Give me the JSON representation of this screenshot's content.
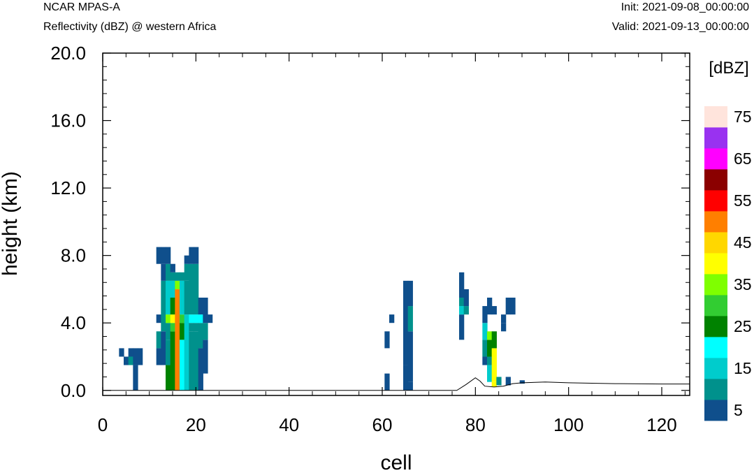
{
  "header": {
    "model": "NCAR MPAS-A",
    "field": "Reflectivity (dBZ) @ western Africa",
    "init": "Init: 2021-09-08_00:00:00",
    "valid": "Valid: 2021-09-13_00:00:00"
  },
  "chart_data": {
    "type": "heatmap",
    "xlabel": "cell",
    "ylabel": "height (km)",
    "xlim": [
      0,
      126
    ],
    "ylim": [
      -0.3,
      20.0
    ],
    "xticks": [
      0,
      20,
      40,
      60,
      80,
      100,
      120
    ],
    "yticks": [
      0.0,
      4.0,
      8.0,
      12.0,
      16.0,
      20.0
    ],
    "ytick_labels": [
      "0.0",
      "4.0",
      "8.0",
      "12.0",
      "16.0",
      "20.0"
    ],
    "colorbar": {
      "unit": "[dBZ]",
      "labels": [
        "5",
        "15",
        "25",
        "35",
        "45",
        "55",
        "65",
        "75"
      ],
      "levels": [
        5,
        10,
        15,
        20,
        25,
        30,
        35,
        40,
        45,
        50,
        55,
        60,
        65,
        70,
        75
      ],
      "colors": [
        "#0f4f8c",
        "#00918c",
        "#00cccc",
        "#00ffff",
        "#008200",
        "#32cd32",
        "#7fff00",
        "#ffff00",
        "#ffd700",
        "#ff7f00",
        "#ff0000",
        "#8b0000",
        "#ff00ff",
        "#9932f0",
        "#ffe4dc"
      ]
    },
    "cell_height_km": 0.5,
    "columns": [
      [
        4,
        [
          [
            2,
            2.5,
            5
          ]
        ]
      ],
      [
        5,
        [
          [
            1.5,
            2,
            5
          ]
        ]
      ],
      [
        6,
        [
          [
            2,
            2.5,
            5
          ],
          [
            1.5,
            2,
            10
          ]
        ]
      ],
      [
        7,
        [
          [
            0,
            1.5,
            5
          ],
          [
            1.5,
            2.5,
            5
          ]
        ]
      ],
      [
        8,
        [
          [
            1.5,
            2.5,
            5
          ]
        ]
      ],
      [
        12,
        [
          [
            1.5,
            2.5,
            5
          ],
          [
            2.5,
            3.5,
            10
          ],
          [
            4.0,
            4.5,
            5
          ],
          [
            7.5,
            8.5,
            5
          ]
        ]
      ],
      [
        13,
        [
          [
            1.5,
            3.5,
            5
          ],
          [
            3.5,
            6.5,
            10
          ],
          [
            6.5,
            7.5,
            5
          ],
          [
            7.5,
            8.5,
            5
          ]
        ]
      ],
      [
        14,
        [
          [
            0,
            1.5,
            25
          ],
          [
            1.5,
            3.0,
            10
          ],
          [
            3.0,
            4.0,
            10
          ],
          [
            4.0,
            4.5,
            35
          ],
          [
            4.5,
            6.5,
            15
          ],
          [
            6.5,
            7.5,
            10
          ],
          [
            7.5,
            8.5,
            5
          ]
        ]
      ],
      [
        15,
        [
          [
            0,
            3.5,
            25
          ],
          [
            3.5,
            4.0,
            30
          ],
          [
            4.0,
            4.5,
            40
          ],
          [
            4.5,
            5.5,
            25
          ],
          [
            5.5,
            6.5,
            15
          ],
          [
            6.5,
            7.0,
            10
          ],
          [
            7.0,
            7.5,
            5
          ]
        ]
      ],
      [
        16,
        [
          [
            0,
            6.0,
            50
          ],
          [
            6.0,
            6.5,
            35
          ],
          [
            6.5,
            7.0,
            10
          ]
        ]
      ],
      [
        17,
        [
          [
            0,
            3.0,
            20
          ],
          [
            3.0,
            4.0,
            25
          ],
          [
            4.0,
            4.5,
            30
          ],
          [
            4.5,
            6.5,
            15
          ],
          [
            6.5,
            7.0,
            10
          ]
        ]
      ],
      [
        18,
        [
          [
            0,
            4.5,
            15
          ],
          [
            4.5,
            6.5,
            10
          ],
          [
            6.5,
            7.5,
            10
          ],
          [
            7.5,
            8.0,
            5
          ]
        ]
      ],
      [
        19,
        [
          [
            0,
            3.5,
            10
          ],
          [
            3.5,
            4.0,
            10
          ],
          [
            4.0,
            4.5,
            20
          ],
          [
            4.5,
            7.5,
            10
          ],
          [
            7.5,
            8.5,
            5
          ]
        ]
      ],
      [
        20,
        [
          [
            0,
            3.5,
            10
          ],
          [
            3.5,
            4.0,
            10
          ],
          [
            4.0,
            4.5,
            20
          ],
          [
            4.5,
            7.5,
            10
          ],
          [
            7.5,
            8.5,
            5
          ]
        ]
      ],
      [
        21,
        [
          [
            0,
            2.5,
            5
          ],
          [
            2.5,
            4.0,
            10
          ],
          [
            4.0,
            4.5,
            20
          ],
          [
            4.5,
            5.5,
            5
          ]
        ]
      ],
      [
        22,
        [
          [
            1.0,
            3.0,
            5
          ],
          [
            3.0,
            4.0,
            10
          ],
          [
            4.0,
            5.5,
            5
          ]
        ]
      ],
      [
        23,
        [
          [
            4.0,
            4.5,
            5
          ]
        ]
      ],
      [
        61,
        [
          [
            0,
            1.0,
            5
          ],
          [
            2.5,
            3.5,
            5
          ]
        ]
      ],
      [
        62,
        [
          [
            4.0,
            4.5,
            5
          ]
        ]
      ],
      [
        65,
        [
          [
            0,
            1.5,
            5
          ],
          [
            1.5,
            6.5,
            5
          ]
        ]
      ],
      [
        66,
        [
          [
            0,
            0.5,
            5
          ],
          [
            0.5,
            3.5,
            5
          ],
          [
            3.5,
            5.0,
            10
          ],
          [
            5.0,
            6.5,
            5
          ]
        ]
      ],
      [
        77,
        [
          [
            3.0,
            4.5,
            5
          ],
          [
            4.5,
            5.0,
            15
          ],
          [
            5.0,
            5.5,
            10
          ],
          [
            5.5,
            7.0,
            5
          ]
        ]
      ],
      [
        78,
        [
          [
            4.5,
            5.0,
            10
          ],
          [
            5.0,
            5.5,
            5
          ],
          [
            5.5,
            6.0,
            5
          ]
        ]
      ],
      [
        82,
        [
          [
            1.5,
            2.0,
            5
          ],
          [
            2.0,
            3.0,
            10
          ],
          [
            3.0,
            4.0,
            15
          ],
          [
            4.0,
            5.0,
            5
          ]
        ]
      ],
      [
        83,
        [
          [
            0.5,
            1.5,
            15
          ],
          [
            1.5,
            2.0,
            10
          ],
          [
            2.0,
            3.0,
            25
          ],
          [
            3.0,
            3.5,
            35
          ],
          [
            4.5,
            5.5,
            5
          ]
        ]
      ],
      [
        84,
        [
          [
            0.2,
            0.5,
            40
          ],
          [
            0.5,
            2.5,
            40
          ],
          [
            2.5,
            3.5,
            25
          ],
          [
            4.5,
            5.0,
            5
          ]
        ]
      ],
      [
        85,
        [
          [
            0.3,
            0.8,
            10
          ]
        ]
      ],
      [
        86,
        [
          [
            3.5,
            4.0,
            5
          ],
          [
            4.0,
            4.5,
            5
          ]
        ]
      ],
      [
        87,
        [
          [
            0.3,
            0.8,
            5
          ],
          [
            4.5,
            5.5,
            5
          ]
        ]
      ],
      [
        88,
        [
          [
            4.5,
            5.5,
            5
          ]
        ]
      ],
      [
        90,
        [
          [
            0.4,
            0.6,
            5
          ]
        ]
      ]
    ],
    "terrain": [
      [
        0,
        0
      ],
      [
        76,
        0
      ],
      [
        78,
        0.35
      ],
      [
        80,
        0.75
      ],
      [
        81,
        0.55
      ],
      [
        82,
        0.25
      ],
      [
        84,
        0.2
      ],
      [
        86,
        0.25
      ],
      [
        88,
        0.4
      ],
      [
        90,
        0.45
      ],
      [
        95,
        0.5
      ],
      [
        100,
        0.45
      ],
      [
        110,
        0.4
      ],
      [
        120,
        0.38
      ],
      [
        126,
        0.38
      ]
    ]
  }
}
